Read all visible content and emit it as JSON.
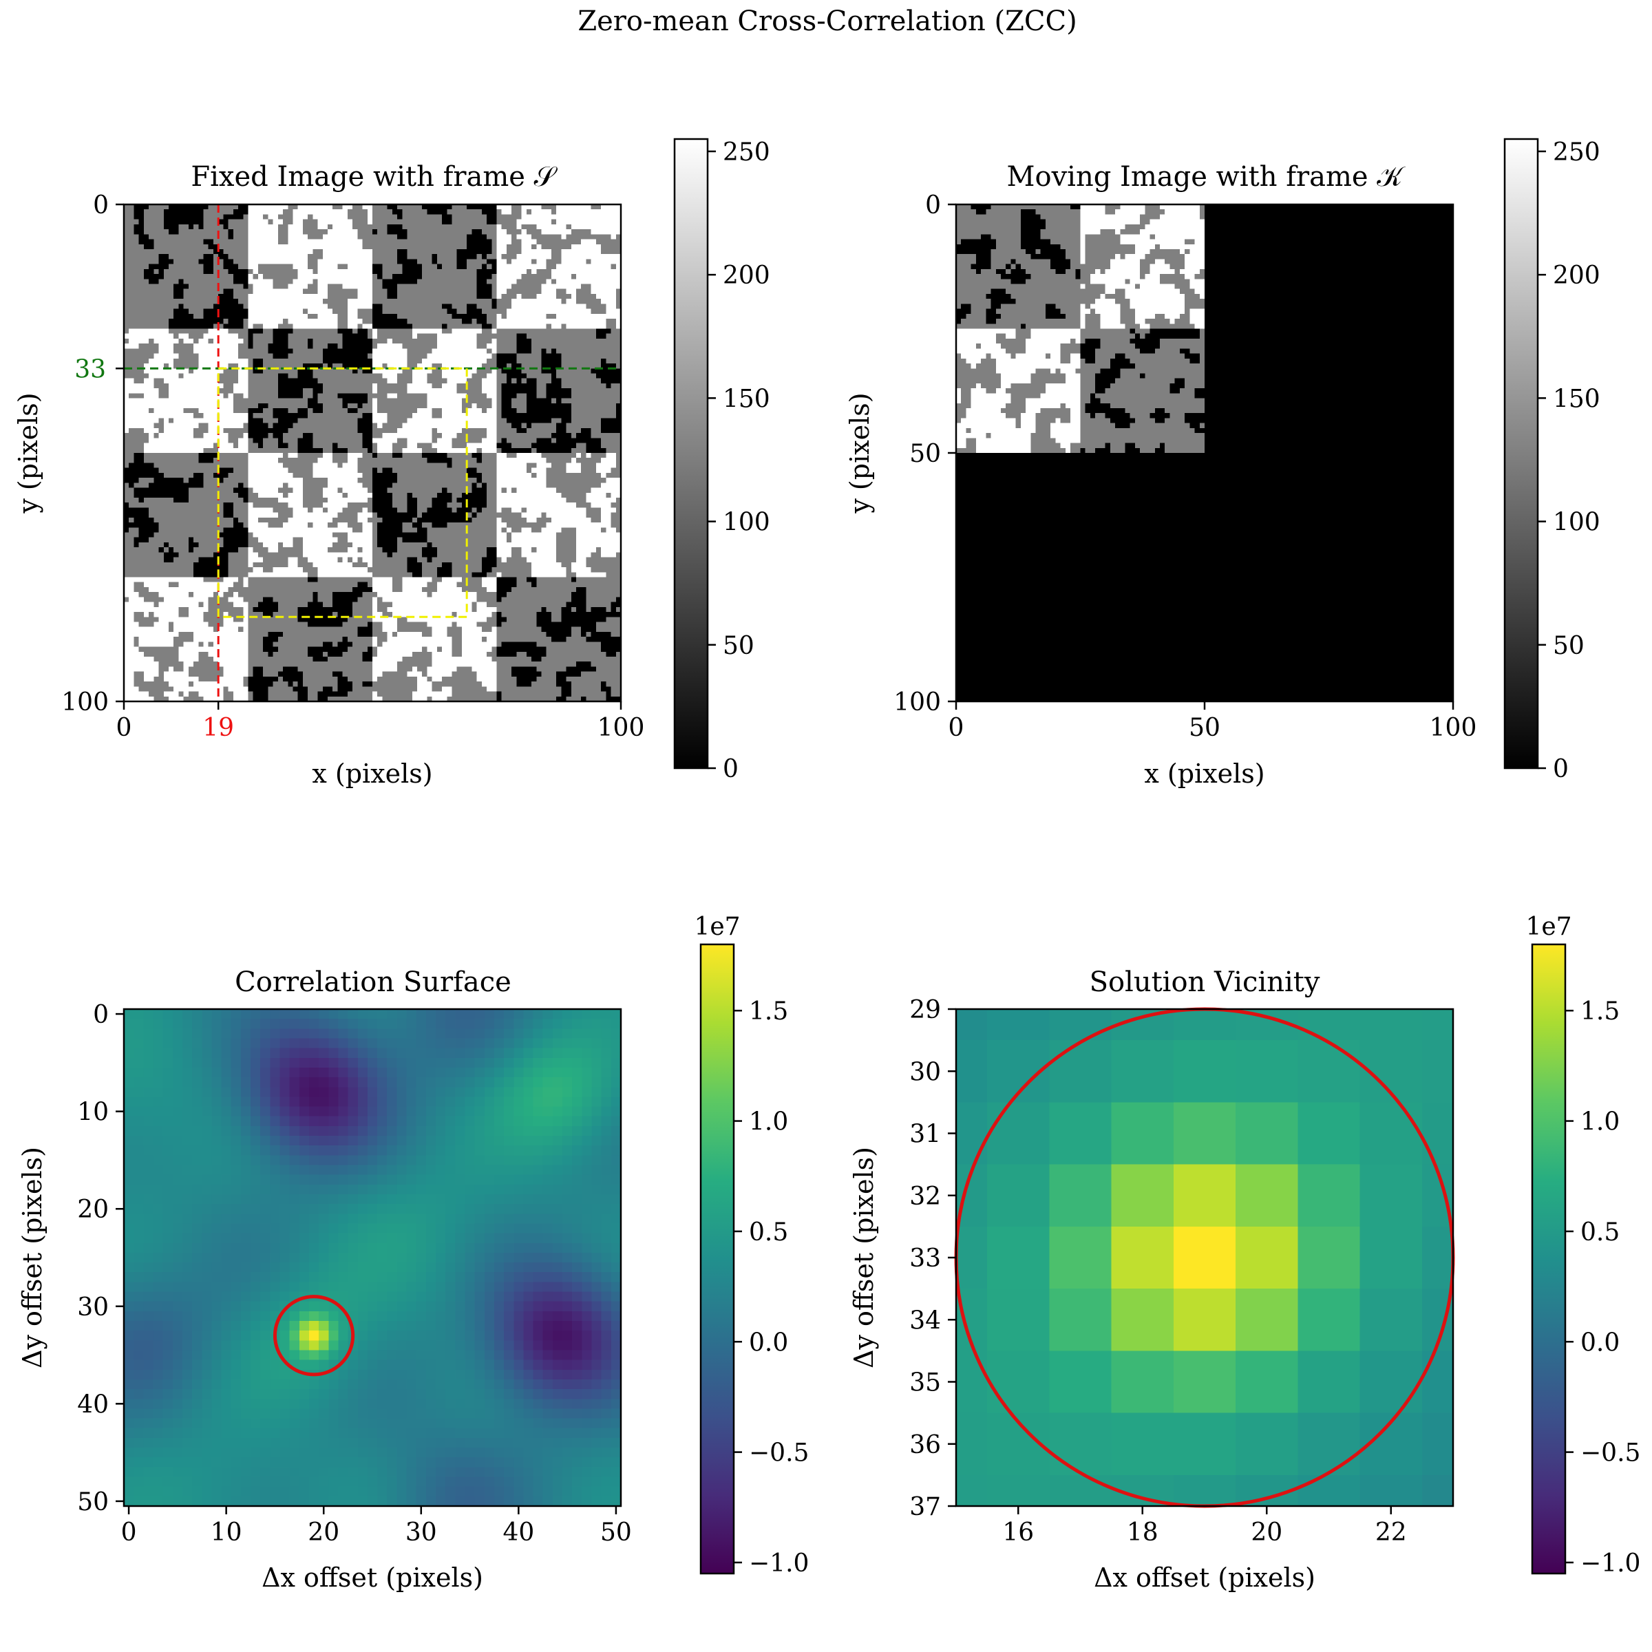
{
  "figure_title": "Zero-mean Cross-Correlation (ZCC)",
  "colors": {
    "frame_x_line": "#ee1111",
    "frame_y_line": "#117711",
    "template_box": "#f0f000",
    "peak_circle": "#dd1111",
    "viridis_high": "#fde725",
    "viridis_low": "#440154"
  },
  "chart_data": [
    {
      "id": "fixed",
      "type": "heatmap",
      "title": "Fixed Image with frame 𝒮",
      "xlabel": "x (pixels)",
      "ylabel": "y (pixels)",
      "xlim": [
        0,
        100
      ],
      "ylim": [
        100,
        0
      ],
      "xticks": [
        "0",
        "100"
      ],
      "yticks": [
        "0",
        "100"
      ],
      "colormap": "gray",
      "colorbar": {
        "range": [
          0,
          255
        ],
        "ticks": [
          "0",
          "50",
          "100",
          "150",
          "200",
          "250"
        ]
      },
      "checker_block_size": 25,
      "pattern": "random binary texture inside checkerboard blocks (levels 0, 128, 255)",
      "frame_origin": {
        "x": 19,
        "y": 33,
        "x_label": "19",
        "y_label": "33"
      },
      "template_box": {
        "x0": 19,
        "y0": 33,
        "x1": 69,
        "y1": 83
      }
    },
    {
      "id": "moving",
      "type": "heatmap",
      "title": "Moving Image with frame 𝒦",
      "xlabel": "x (pixels)",
      "ylabel": "y (pixels)",
      "xlim": [
        0,
        100
      ],
      "ylim": [
        100,
        0
      ],
      "xticks": [
        "0",
        "50",
        "100"
      ],
      "yticks": [
        "0",
        "50",
        "100"
      ],
      "colormap": "gray",
      "colorbar": {
        "range": [
          0,
          255
        ],
        "ticks": [
          "0",
          "50",
          "100",
          "150",
          "200",
          "250"
        ]
      },
      "content_extent": [
        50,
        50
      ],
      "checker_block_size": 25
    },
    {
      "id": "surface",
      "type": "heatmap",
      "title": "Correlation Surface",
      "xlabel": "Δx offset (pixels)",
      "ylabel": "Δy offset (pixels)",
      "xlim": [
        -0.5,
        50.5
      ],
      "ylim": [
        50.5,
        -0.5
      ],
      "xticks": [
        "0",
        "10",
        "20",
        "30",
        "40",
        "50"
      ],
      "yticks": [
        "0",
        "10",
        "20",
        "30",
        "40",
        "50"
      ],
      "colormap": "viridis",
      "colorbar": {
        "range": [
          -1.05,
          1.8
        ],
        "ticks": [
          "−1.0",
          "−0.5",
          "0.0",
          "0.5",
          "1.0",
          "1.5"
        ],
        "exponent": "1e7"
      },
      "peak": {
        "dx": 19,
        "dy": 33,
        "value": 1.8
      },
      "circle_radius": 4
    },
    {
      "id": "vicinity",
      "type": "heatmap",
      "title": "Solution Vicinity",
      "xlabel": "Δx offset (pixels)",
      "ylabel": "Δy offset (pixels)",
      "xlim": [
        15,
        23
      ],
      "ylim": [
        37,
        29
      ],
      "xticks": [
        "16",
        "18",
        "20",
        "22"
      ],
      "yticks": [
        "29",
        "30",
        "31",
        "32",
        "33",
        "34",
        "35",
        "36",
        "37"
      ],
      "colormap": "viridis",
      "colorbar": {
        "range": [
          -1.05,
          1.8
        ],
        "ticks": [
          "−1.0",
          "−0.5",
          "0.0",
          "0.5",
          "1.0",
          "1.5"
        ],
        "exponent": "1e7"
      },
      "peak": {
        "dx": 19,
        "dy": 33,
        "value": 1.8
      },
      "circle_radius": 4
    }
  ]
}
